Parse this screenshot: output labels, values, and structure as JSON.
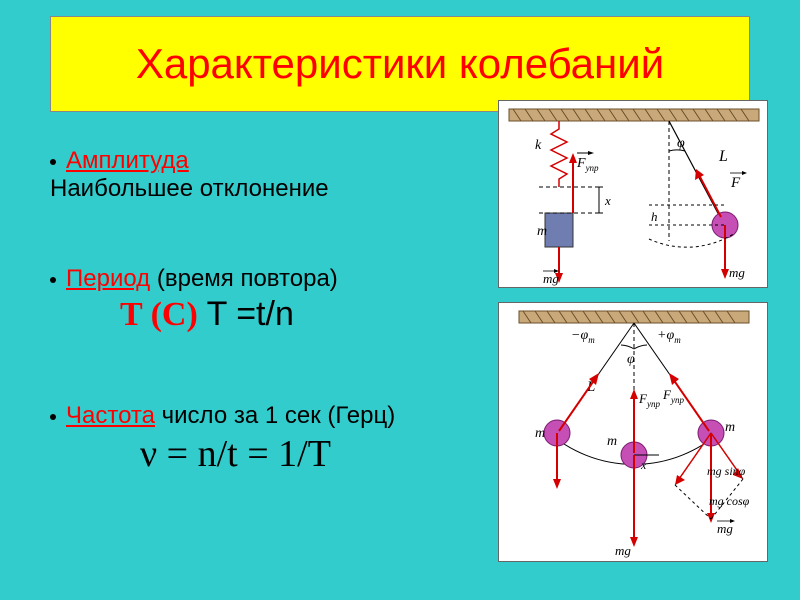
{
  "colors": {
    "slide_bg": "#33cccc",
    "title_bg": "#ffff00",
    "title_fg": "#ff0000",
    "term_fg": "#ff0000",
    "bullet_fg": "#000000",
    "formula_tc": "#ff0000",
    "formula_eq_fg": "#000000",
    "panel_bg": "#ffffff",
    "spring_mass_fill": "#6f7db0",
    "bob_fill": "#c64fb6",
    "bob_stroke": "#7a1b6f",
    "vector_red": "#d40000",
    "ceiling_fill": "#c9a97a",
    "ceiling_hatch": "#6b4f2a"
  },
  "title": "Характеристики  колебаний",
  "amplitude": {
    "term": "Амплитуда",
    "desc": "Наибольшее отклонение"
  },
  "period": {
    "term": "Период",
    "rest": "  (время повтора)",
    "formula_tc": "T (С)",
    "formula_eq": " T =t/n"
  },
  "frequency": {
    "term": "Частота",
    "rest": " число за 1 сек (Герц)",
    "formula": "ν = n/t = 1/T"
  },
  "diagram_labels": {
    "k": "k",
    "F_upr_arrow": "F",
    "upr_sub": "упр",
    "x": "x",
    "m": "m",
    "mg_arrow": "mg",
    "phi": "φ",
    "L": "L",
    "F_arrow": "F",
    "h": "h",
    "phi_m_neg": "−φ",
    "phi_m_pos": "+φ",
    "m_sub": "m",
    "mg_sin": "mg sinφ",
    "mg_cos": "mg cosφ"
  }
}
